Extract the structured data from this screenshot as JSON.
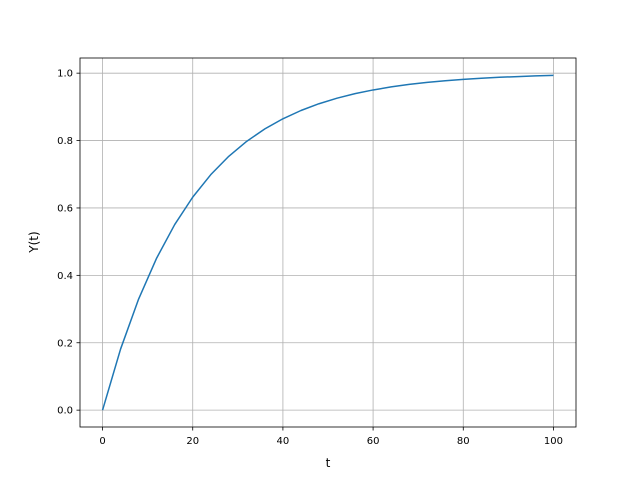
{
  "chart_data": {
    "type": "line",
    "title": "",
    "xlabel": "t",
    "ylabel": "Y(t)",
    "xlim": [
      -5,
      105
    ],
    "ylim": [
      -0.05,
      1.045
    ],
    "grid": true,
    "xticks": [
      0,
      20,
      40,
      60,
      80,
      100
    ],
    "xtick_labels": [
      "0",
      "20",
      "40",
      "60",
      "80",
      "100"
    ],
    "yticks": [
      0.0,
      0.2,
      0.4,
      0.6,
      0.8,
      1.0
    ],
    "ytick_labels": [
      "0.0",
      "0.2",
      "0.4",
      "0.6",
      "0.8",
      "1.0"
    ],
    "series": [
      {
        "color": "#1f77b4",
        "x": [
          0,
          4,
          8,
          12,
          16,
          20,
          24,
          28,
          32,
          36,
          40,
          44,
          48,
          52,
          56,
          60,
          64,
          68,
          72,
          76,
          80,
          84,
          88,
          92,
          96,
          100
        ],
        "y": [
          0,
          0.1813,
          0.3297,
          0.4512,
          0.5507,
          0.6321,
          0.6988,
          0.7534,
          0.7981,
          0.8347,
          0.8647,
          0.8892,
          0.9093,
          0.9257,
          0.9392,
          0.9502,
          0.9592,
          0.9666,
          0.9727,
          0.9776,
          0.9817,
          0.985,
          0.9877,
          0.9899,
          0.9918,
          0.9933
        ]
      }
    ]
  }
}
